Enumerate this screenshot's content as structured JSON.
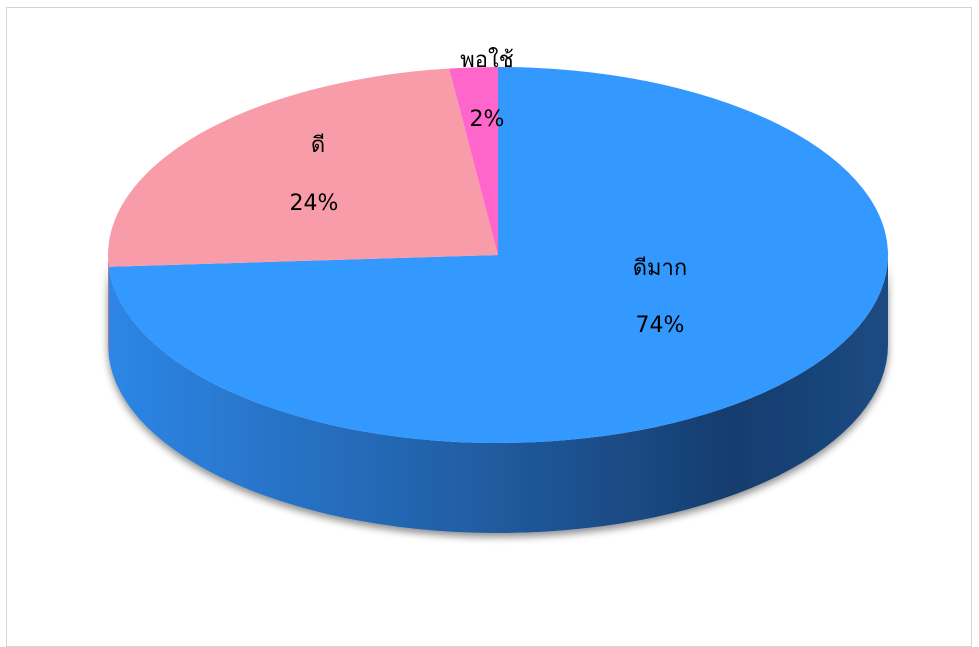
{
  "chart_data": {
    "type": "pie",
    "style": "3d",
    "slices": [
      {
        "label": "ดีมาก",
        "value": 74,
        "percent_label": "74%",
        "color": "#3399FF",
        "side_color_dark": "#143A66"
      },
      {
        "label": "ดี",
        "value": 24,
        "percent_label": "24%",
        "color": "#F79CA8",
        "side_color_dark": "#B86C77"
      },
      {
        "label": "พอใช้",
        "value": 2,
        "percent_label": "2%",
        "color": "#FF66CC",
        "side_color_dark": "#B8388F"
      }
    ],
    "start": "12 o'clock",
    "direction": "clockwise",
    "legend": "none"
  }
}
